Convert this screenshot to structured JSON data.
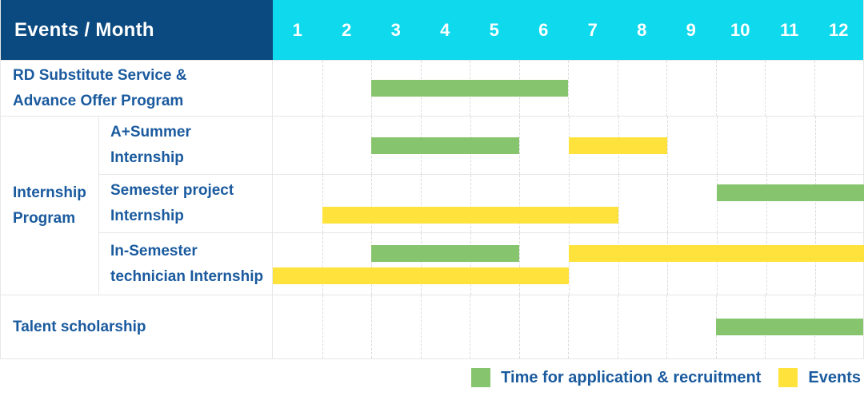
{
  "header": {
    "title": "Events / Month"
  },
  "colors": {
    "header_bg": "#0B4A80",
    "month_header_bg": "#0FD9EC",
    "bar_green": "#87C46E",
    "bar_yellow": "#FFE33C",
    "text_blue": "#1A5A9E"
  },
  "chart_data": {
    "type": "bar",
    "subtype": "gantt-schedule-table",
    "title": "Events / Month",
    "x_axis": {
      "label": "Month",
      "range": [
        1,
        12
      ],
      "ticks": [
        "1",
        "2",
        "3",
        "4",
        "5",
        "6",
        "7",
        "8",
        "9",
        "10",
        "11",
        "12"
      ]
    },
    "legend": [
      {
        "label": "Time for application & recruitment",
        "color": "#87C46E"
      },
      {
        "label": "Events",
        "color": "#FFE33C"
      }
    ],
    "rows": [
      {
        "group": "",
        "label": "RD Substitute Service &\nAdvance Offer Program",
        "bars": [
          {
            "series": 0,
            "series_label": "Time for application & recruitment",
            "start_month": 3,
            "end_month": 6,
            "lane": "solo"
          }
        ]
      },
      {
        "group": "Internship Program",
        "label": "A+Summer\nInternship",
        "bars": [
          {
            "series": 0,
            "series_label": "Time for application & recruitment",
            "start_month": 3,
            "end_month": 5,
            "lane": "solo"
          },
          {
            "series": 1,
            "series_label": "Events",
            "start_month": 7,
            "end_month": 8,
            "lane": "solo"
          }
        ]
      },
      {
        "group": "Internship Program",
        "label": "Semester project\nInternship",
        "bars": [
          {
            "series": 0,
            "series_label": "Time for application & recruitment",
            "start_month": 10,
            "end_month": 12,
            "lane": "top"
          },
          {
            "series": 1,
            "series_label": "Events",
            "start_month": 2,
            "end_month": 7,
            "lane": "bottom"
          }
        ]
      },
      {
        "group": "Internship Program",
        "label": "In-Semester\ntechnician Internship",
        "bars": [
          {
            "series": 0,
            "series_label": "Time for application & recruitment",
            "start_month": 3,
            "end_month": 5,
            "lane": "top"
          },
          {
            "series": 1,
            "series_label": "Events",
            "start_month": 7,
            "end_month": 12,
            "lane": "top"
          },
          {
            "series": 1,
            "series_label": "Events",
            "start_month": 1,
            "end_month": 6,
            "lane": "bottom"
          }
        ]
      },
      {
        "group": "",
        "label": "Talent scholarship",
        "bars": [
          {
            "series": 0,
            "series_label": "Time for application & recruitment",
            "start_month": 10,
            "end_month": 12,
            "lane": "solo"
          }
        ]
      }
    ]
  }
}
